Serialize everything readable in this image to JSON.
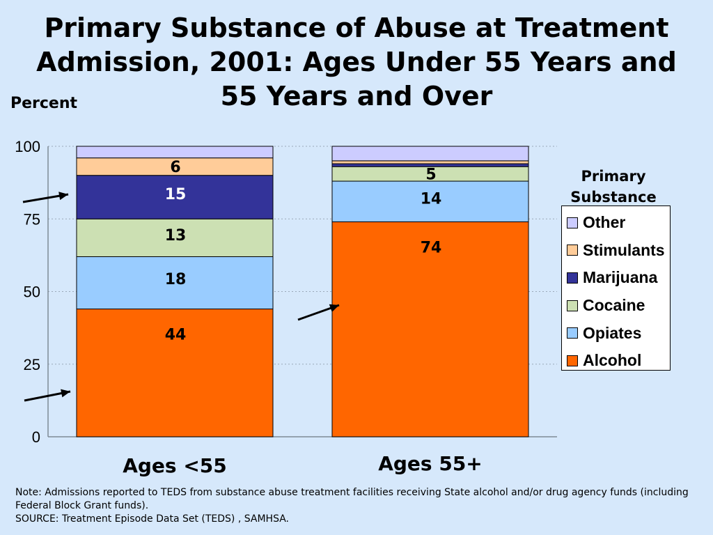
{
  "title_lines": [
    "Primary Substance of Abuse at Treatment",
    "Admission, 2001: Ages Under 55 Years and",
    "55 Years and Over"
  ],
  "note": "Note: Admissions reported to TEDS from substance abuse treatment facilities receiving State alcohol and/or drug agency funds (including Federal Block Grant funds).",
  "source": "SOURCE: Treatment Episode Data Set (TEDS) , SAMHSA.",
  "chart_data": {
    "type": "bar",
    "stacked": true,
    "title": "Primary Substance of Abuse at Treatment Admission, 2001: Ages Under 55 Years and 55 Years and Over",
    "ylabel": "Percent",
    "xlabel": "",
    "ylim": [
      0,
      100
    ],
    "yticks": [
      0,
      25,
      50,
      75,
      100
    ],
    "grid": true,
    "legend_position": "right",
    "legend_title": "Primary Substance",
    "categories": [
      "Ages <55",
      "Ages 55+"
    ],
    "series": [
      {
        "name": "Alcohol",
        "color": "#ff6600",
        "values": [
          44,
          74
        ],
        "labels": [
          "44",
          "74"
        ],
        "label_color": "#000000"
      },
      {
        "name": "Opiates",
        "color": "#99ccff",
        "values": [
          18,
          14
        ],
        "labels": [
          "18",
          "14"
        ],
        "label_color": "#000000"
      },
      {
        "name": "Cocaine",
        "color": "#cce0b3",
        "values": [
          13,
          5
        ],
        "labels": [
          "13",
          "5"
        ],
        "label_color": "#000000"
      },
      {
        "name": "Marijuana",
        "color": "#333399",
        "values": [
          15,
          1
        ],
        "labels": [
          "15",
          ""
        ],
        "label_color": "#ffffff"
      },
      {
        "name": "Stimulants",
        "color": "#ffcc99",
        "values": [
          6,
          1
        ],
        "labels": [
          "6",
          ""
        ],
        "label_color": "#000000"
      },
      {
        "name": "Other",
        "color": "#ccccff",
        "values": [
          4,
          5
        ],
        "labels": [
          "",
          ""
        ],
        "label_color": "#000000"
      }
    ]
  }
}
